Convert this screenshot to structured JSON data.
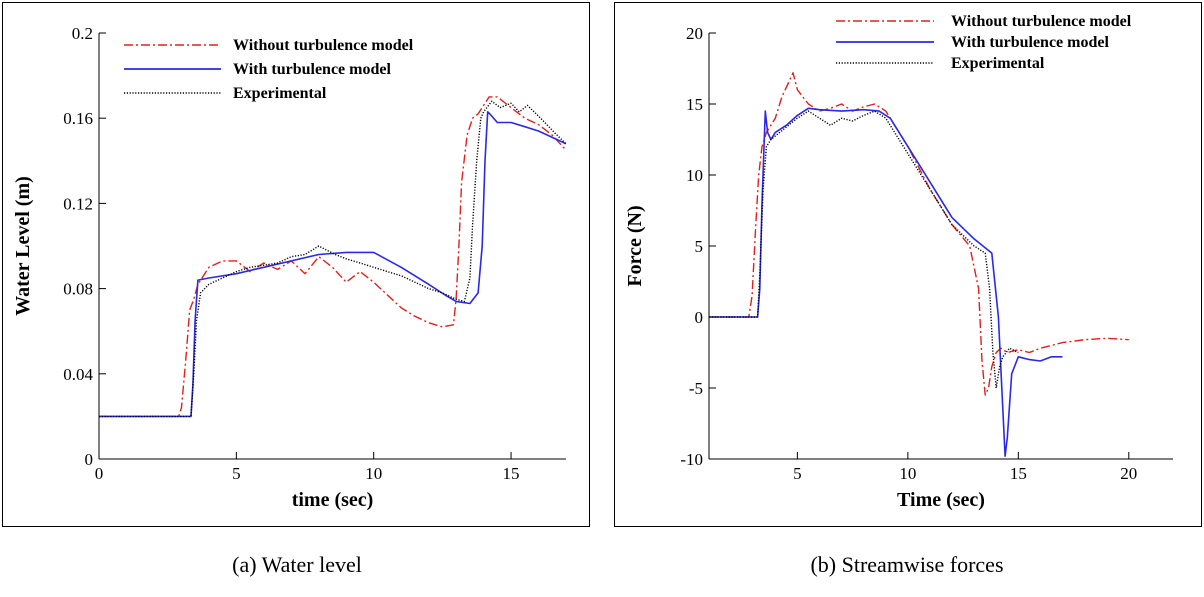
{
  "chart_data": [
    {
      "type": "line",
      "title": "",
      "xlabel": "time (sec)",
      "ylabel": "Water Level (m)",
      "xlim": [
        0,
        17
      ],
      "ylim": [
        0,
        0.2
      ],
      "xticks": [
        0,
        5,
        10,
        15
      ],
      "xtick_labels": [
        "0",
        "5",
        "10",
        "15"
      ],
      "yticks": [
        0,
        0.04,
        0.08,
        0.12,
        0.16,
        0.2
      ],
      "ytick_labels": [
        "0",
        "0.04",
        "0.08",
        "0.12",
        "0.16",
        "0.2"
      ],
      "grid": false,
      "legend_position": "top",
      "series": [
        {
          "name": "Without turbulence model",
          "color": "#e0201b",
          "style": "dashdot",
          "x": [
            0,
            2.9,
            3.0,
            3.15,
            3.3,
            3.45,
            3.6,
            4.0,
            4.5,
            5.0,
            5.5,
            6.0,
            6.5,
            7.0,
            7.5,
            8.0,
            8.5,
            9.0,
            9.5,
            10.0,
            10.5,
            11.0,
            11.5,
            12.0,
            12.5,
            12.9,
            13.0,
            13.1,
            13.2,
            13.4,
            13.6,
            13.8,
            14.0,
            14.2,
            14.5,
            15.0,
            15.5,
            16.0,
            16.5,
            17.0
          ],
          "y": [
            0.02,
            0.02,
            0.024,
            0.045,
            0.07,
            0.075,
            0.082,
            0.09,
            0.093,
            0.093,
            0.088,
            0.092,
            0.089,
            0.093,
            0.087,
            0.095,
            0.09,
            0.083,
            0.088,
            0.083,
            0.077,
            0.071,
            0.067,
            0.064,
            0.062,
            0.063,
            0.075,
            0.1,
            0.13,
            0.152,
            0.16,
            0.162,
            0.166,
            0.17,
            0.17,
            0.165,
            0.16,
            0.157,
            0.152,
            0.145
          ]
        },
        {
          "name": "With turbulence model",
          "color": "#2a2ae6",
          "style": "solid",
          "x": [
            0,
            3.35,
            3.42,
            3.5,
            3.6,
            4.0,
            5.0,
            6.0,
            7.0,
            8.0,
            9.0,
            10.0,
            11.0,
            12.0,
            12.6,
            13.0,
            13.5,
            13.8,
            13.95,
            14.05,
            14.15,
            14.3,
            14.5,
            15.0,
            15.5,
            16.0,
            16.5,
            17.0
          ],
          "y": [
            0.02,
            0.02,
            0.035,
            0.065,
            0.084,
            0.085,
            0.087,
            0.09,
            0.093,
            0.096,
            0.097,
            0.097,
            0.09,
            0.082,
            0.077,
            0.074,
            0.073,
            0.078,
            0.1,
            0.14,
            0.163,
            0.161,
            0.158,
            0.158,
            0.156,
            0.154,
            0.151,
            0.148
          ]
        },
        {
          "name": "Experimental",
          "color": "#000000",
          "style": "dotted",
          "x": [
            0,
            3.35,
            3.45,
            3.55,
            3.7,
            4.0,
            4.5,
            5.0,
            5.5,
            6.0,
            6.5,
            7.0,
            7.5,
            8.0,
            8.3,
            8.6,
            9.0,
            9.5,
            10.0,
            10.5,
            11.0,
            11.5,
            12.0,
            12.5,
            13.0,
            13.3,
            13.5,
            13.6,
            13.75,
            13.9,
            14.0,
            14.3,
            14.6,
            15.0,
            15.3,
            15.6,
            16.0,
            16.3,
            16.6,
            17.0
          ],
          "y": [
            0.02,
            0.02,
            0.04,
            0.065,
            0.078,
            0.082,
            0.085,
            0.088,
            0.09,
            0.091,
            0.092,
            0.095,
            0.096,
            0.1,
            0.098,
            0.096,
            0.094,
            0.092,
            0.09,
            0.088,
            0.086,
            0.083,
            0.08,
            0.078,
            0.075,
            0.074,
            0.085,
            0.11,
            0.14,
            0.16,
            0.163,
            0.168,
            0.165,
            0.167,
            0.163,
            0.166,
            0.161,
            0.157,
            0.153,
            0.148
          ]
        }
      ]
    },
    {
      "type": "line",
      "title": "",
      "xlabel": "Time (sec)",
      "ylabel": "Force (N)",
      "xlim": [
        1,
        22
      ],
      "ylim": [
        -10,
        20
      ],
      "xticks": [
        5,
        10,
        15,
        20
      ],
      "xtick_labels": [
        "5",
        "10",
        "15",
        "20"
      ],
      "yticks": [
        -10,
        -5,
        0,
        5,
        10,
        15,
        20
      ],
      "ytick_labels": [
        "-10",
        "-5",
        "0",
        "5",
        "10",
        "15",
        "20"
      ],
      "grid": false,
      "legend_position": "top-right",
      "series": [
        {
          "name": "Without turbulence model",
          "color": "#e0201b",
          "style": "dashdot",
          "x": [
            1,
            2.8,
            2.95,
            3.1,
            3.25,
            3.4,
            3.6,
            4.0,
            4.3,
            4.6,
            4.8,
            5.0,
            5.5,
            6.0,
            6.5,
            7.0,
            7.5,
            8.0,
            8.5,
            9.0,
            10.0,
            11.0,
            12.0,
            12.8,
            13.2,
            13.35,
            13.5,
            13.65,
            13.8,
            14.0,
            14.2,
            14.5,
            15.0,
            15.5,
            16.0,
            17.0,
            18.0,
            19.0,
            20.0
          ],
          "y": [
            0,
            0,
            1.5,
            6,
            10,
            12,
            13,
            14,
            15.5,
            16.5,
            17.2,
            16,
            15,
            14.5,
            14.7,
            15,
            14.5,
            14.8,
            15,
            14.5,
            12,
            9,
            6.5,
            5,
            2,
            -3,
            -5.5,
            -5,
            -3.5,
            -2.5,
            -2.2,
            -2.5,
            -2.3,
            -2.5,
            -2.2,
            -1.8,
            -1.6,
            -1.5,
            -1.6
          ]
        },
        {
          "name": "With turbulence model",
          "color": "#2a2ae6",
          "style": "solid",
          "x": [
            1,
            3.2,
            3.3,
            3.4,
            3.55,
            3.65,
            3.8,
            4.0,
            4.5,
            5.0,
            5.5,
            6.0,
            7.0,
            8.0,
            8.7,
            9.2,
            10.0,
            11.0,
            12.0,
            13.0,
            13.8,
            14.1,
            14.25,
            14.4,
            14.5,
            14.7,
            15.0,
            15.5,
            16.0,
            16.5,
            17.0
          ],
          "y": [
            0,
            0,
            2,
            8,
            14.5,
            13,
            12.5,
            13,
            13.5,
            14.2,
            14.7,
            14.6,
            14.5,
            14.6,
            14.5,
            14,
            12,
            9.5,
            7,
            5.5,
            4.5,
            0,
            -5,
            -9.8,
            -8.5,
            -4,
            -2.8,
            -3,
            -3.1,
            -2.8,
            -2.8
          ]
        },
        {
          "name": "Experimental",
          "color": "#000000",
          "style": "dotted",
          "x": [
            1,
            3.2,
            3.3,
            3.45,
            3.6,
            3.8,
            4.2,
            4.6,
            5.0,
            5.5,
            6.0,
            6.5,
            7.0,
            7.5,
            8.0,
            8.5,
            9.0,
            10.0,
            11.0,
            12.0,
            13.0,
            13.5,
            13.7,
            13.85,
            14.0,
            14.15,
            14.3,
            14.6,
            15.0
          ],
          "y": [
            0,
            0,
            3,
            9,
            12,
            12.5,
            13,
            13.5,
            14,
            14.5,
            14,
            13.5,
            14,
            13.8,
            14.2,
            14.5,
            14,
            11.5,
            9,
            6.5,
            5,
            4.5,
            2,
            -2.5,
            -5,
            -3.5,
            -2.8,
            -2.2,
            -2.5
          ]
        }
      ]
    }
  ],
  "captions": {
    "a": "(a) Water level",
    "b": "(b) Streamwise forces"
  }
}
